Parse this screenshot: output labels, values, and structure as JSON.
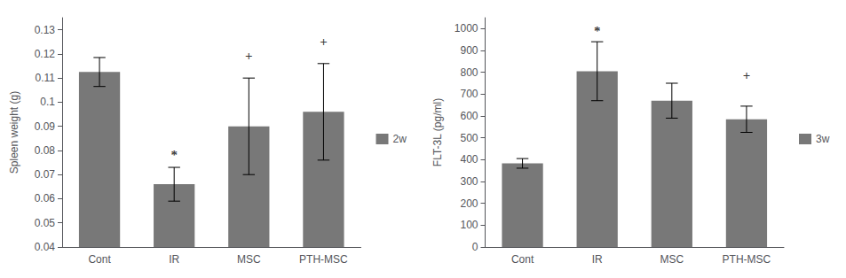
{
  "chart_data": [
    {
      "type": "bar",
      "categories": [
        "Cont",
        "IR",
        "MSC",
        "PTH-MSC"
      ],
      "series": [
        {
          "name": "2w",
          "color": "#787878",
          "values": [
            0.1125,
            0.066,
            0.09,
            0.096
          ],
          "errors": [
            0.006,
            0.007,
            0.02,
            0.02
          ]
        }
      ],
      "ylabel": "Spleen weight (g)",
      "ylim": [
        0.04,
        0.135
      ],
      "yticks": [
        0.04,
        0.05,
        0.06,
        0.07,
        0.08,
        0.09,
        0.1,
        0.11,
        0.12,
        0.13
      ],
      "grid": false,
      "legend": "right",
      "annotations": [
        {
          "x": "IR",
          "y": 0.0755,
          "text": "*"
        },
        {
          "x": "MSC",
          "y": 0.1165,
          "text": "+"
        },
        {
          "x": "PTH-MSC",
          "y": 0.1225,
          "text": "+"
        }
      ]
    },
    {
      "type": "bar",
      "categories": [
        "Cont",
        "IR",
        "MSC",
        "PTH-MSC"
      ],
      "series": [
        {
          "name": "3w",
          "color": "#787878",
          "values": [
            383,
            805,
            670,
            585
          ],
          "errors": [
            22,
            135,
            80,
            60
          ]
        }
      ],
      "ylabel": "FLT-3L (pg/ml)",
      "ylim": [
        0,
        1050
      ],
      "yticks": [
        0,
        100,
        200,
        300,
        400,
        500,
        600,
        700,
        800,
        900,
        1000
      ],
      "grid": false,
      "legend": "right",
      "annotations": [
        {
          "x": "IR",
          "y": 960,
          "text": "*"
        },
        {
          "x": "PTH-MSC",
          "y": 755,
          "text": "+"
        }
      ]
    }
  ]
}
